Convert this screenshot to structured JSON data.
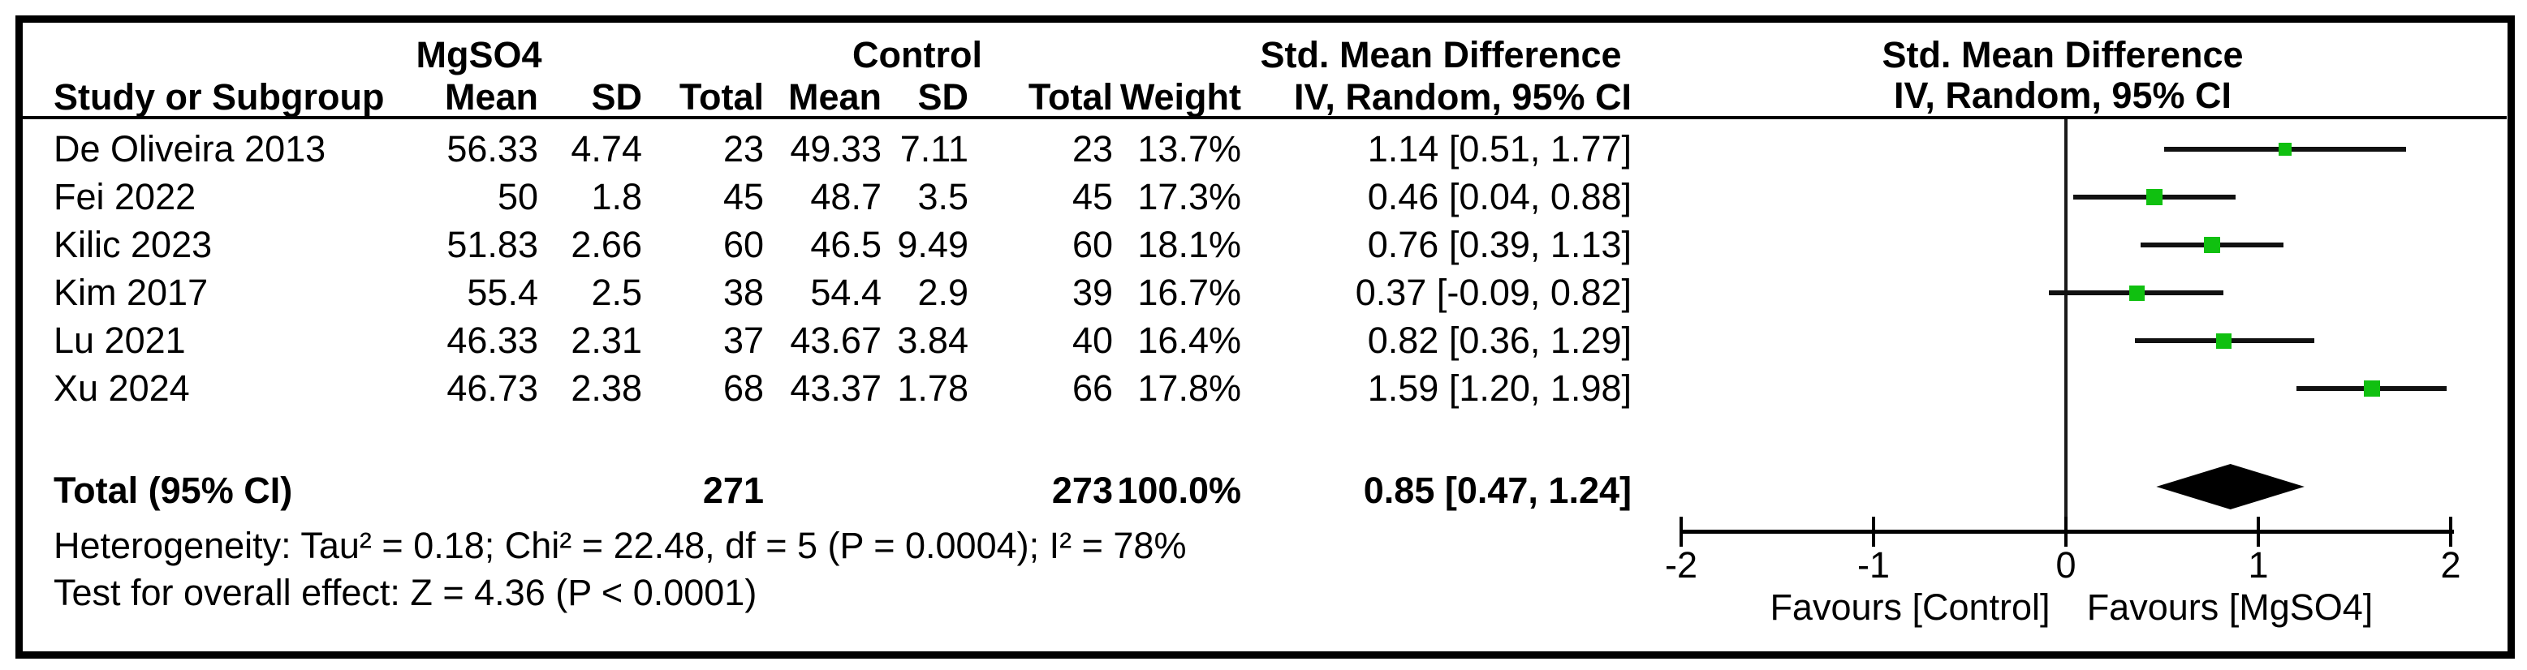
{
  "table": {
    "group1_header": "MgSO4",
    "group2_header": "Control",
    "smd_header": "Std. Mean Difference",
    "col_headers": {
      "study": "Study or Subgroup",
      "mean": "Mean",
      "sd": "SD",
      "total": "Total",
      "weight": "Weight",
      "method": "IV, Random, 95% CI"
    },
    "rows": [
      {
        "study": "De Oliveira 2013",
        "m_mean": "56.33",
        "m_sd": "4.74",
        "m_total": "23",
        "c_mean": "49.33",
        "c_sd": "7.11",
        "c_total": "23",
        "weight": "13.7%",
        "ci": "1.14 [0.51, 1.77]"
      },
      {
        "study": "Fei 2022",
        "m_mean": "50",
        "m_sd": "1.8",
        "m_total": "45",
        "c_mean": "48.7",
        "c_sd": "3.5",
        "c_total": "45",
        "weight": "17.3%",
        "ci": "0.46 [0.04, 0.88]"
      },
      {
        "study": "Kilic 2023",
        "m_mean": "51.83",
        "m_sd": "2.66",
        "m_total": "60",
        "c_mean": "46.5",
        "c_sd": "9.49",
        "c_total": "60",
        "weight": "18.1%",
        "ci": "0.76 [0.39, 1.13]"
      },
      {
        "study": "Kim 2017",
        "m_mean": "55.4",
        "m_sd": "2.5",
        "m_total": "38",
        "c_mean": "54.4",
        "c_sd": "2.9",
        "c_total": "39",
        "weight": "16.7%",
        "ci": "0.37 [-0.09, 0.82]"
      },
      {
        "study": "Lu 2021",
        "m_mean": "46.33",
        "m_sd": "2.31",
        "m_total": "37",
        "c_mean": "43.67",
        "c_sd": "3.84",
        "c_total": "40",
        "weight": "16.4%",
        "ci": "0.82 [0.36, 1.29]"
      },
      {
        "study": "Xu 2024",
        "m_mean": "46.73",
        "m_sd": "2.38",
        "m_total": "68",
        "c_mean": "43.37",
        "c_sd": "1.78",
        "c_total": "66",
        "weight": "17.8%",
        "ci": "1.59 [1.20, 1.98]"
      }
    ],
    "total_row": {
      "label": "Total (95% CI)",
      "m_total": "271",
      "c_total": "273",
      "weight": "100.0%",
      "ci": "0.85 [0.47, 1.24]"
    },
    "heterogeneity": "Heterogeneity: Tau² = 0.18; Chi² = 22.48, df = 5 (P = 0.0004); I² = 78%",
    "overall_effect": "Test for overall effect: Z = 4.36 (P < 0.0001)"
  },
  "plot": {
    "header_line1": "Std. Mean Difference",
    "header_line2": "IV, Random, 95% CI",
    "favours_left": "Favours [Control]",
    "favours_right": "Favours [MgSO4]",
    "marker_color": "#10c010",
    "line_color": "#111111"
  },
  "chart_data": {
    "type": "forest",
    "effect_measure": "Std. Mean Difference",
    "method": "IV, Random, 95% CI",
    "xlim": [
      -2,
      2
    ],
    "ticks": [
      -2,
      -1,
      0,
      1,
      2
    ],
    "x_labels": {
      "left": "Favours [Control]",
      "right": "Favours [MgSO4]"
    },
    "studies": [
      {
        "name": "De Oliveira 2013",
        "mgso4": {
          "mean": 56.33,
          "sd": 4.74,
          "total": 23
        },
        "control": {
          "mean": 49.33,
          "sd": 7.11,
          "total": 23
        },
        "weight_pct": 13.7,
        "est": 1.14,
        "lo": 0.51,
        "hi": 1.77
      },
      {
        "name": "Fei 2022",
        "mgso4": {
          "mean": 50,
          "sd": 1.8,
          "total": 45
        },
        "control": {
          "mean": 48.7,
          "sd": 3.5,
          "total": 45
        },
        "weight_pct": 17.3,
        "est": 0.46,
        "lo": 0.04,
        "hi": 0.88
      },
      {
        "name": "Kilic 2023",
        "mgso4": {
          "mean": 51.83,
          "sd": 2.66,
          "total": 60
        },
        "control": {
          "mean": 46.5,
          "sd": 9.49,
          "total": 60
        },
        "weight_pct": 18.1,
        "est": 0.76,
        "lo": 0.39,
        "hi": 1.13
      },
      {
        "name": "Kim 2017",
        "mgso4": {
          "mean": 55.4,
          "sd": 2.5,
          "total": 38
        },
        "control": {
          "mean": 54.4,
          "sd": 2.9,
          "total": 39
        },
        "weight_pct": 16.7,
        "est": 0.37,
        "lo": -0.09,
        "hi": 0.82
      },
      {
        "name": "Lu 2021",
        "mgso4": {
          "mean": 46.33,
          "sd": 2.31,
          "total": 37
        },
        "control": {
          "mean": 43.67,
          "sd": 3.84,
          "total": 40
        },
        "weight_pct": 16.4,
        "est": 0.82,
        "lo": 0.36,
        "hi": 1.29
      },
      {
        "name": "Xu 2024",
        "mgso4": {
          "mean": 46.73,
          "sd": 2.38,
          "total": 68
        },
        "control": {
          "mean": 43.37,
          "sd": 1.78,
          "total": 66
        },
        "weight_pct": 17.8,
        "est": 1.59,
        "lo": 1.2,
        "hi": 1.98
      }
    ],
    "total": {
      "label": "Total (95% CI)",
      "mgso4_total": 271,
      "control_total": 273,
      "weight_pct": 100.0,
      "est": 0.85,
      "lo": 0.47,
      "hi": 1.24
    },
    "heterogeneity": "Tau² = 0.18; Chi² = 22.48, df = 5 (P = 0.0004); I² = 78%",
    "overall_effect_test": "Z = 4.36 (P < 0.0001)"
  }
}
